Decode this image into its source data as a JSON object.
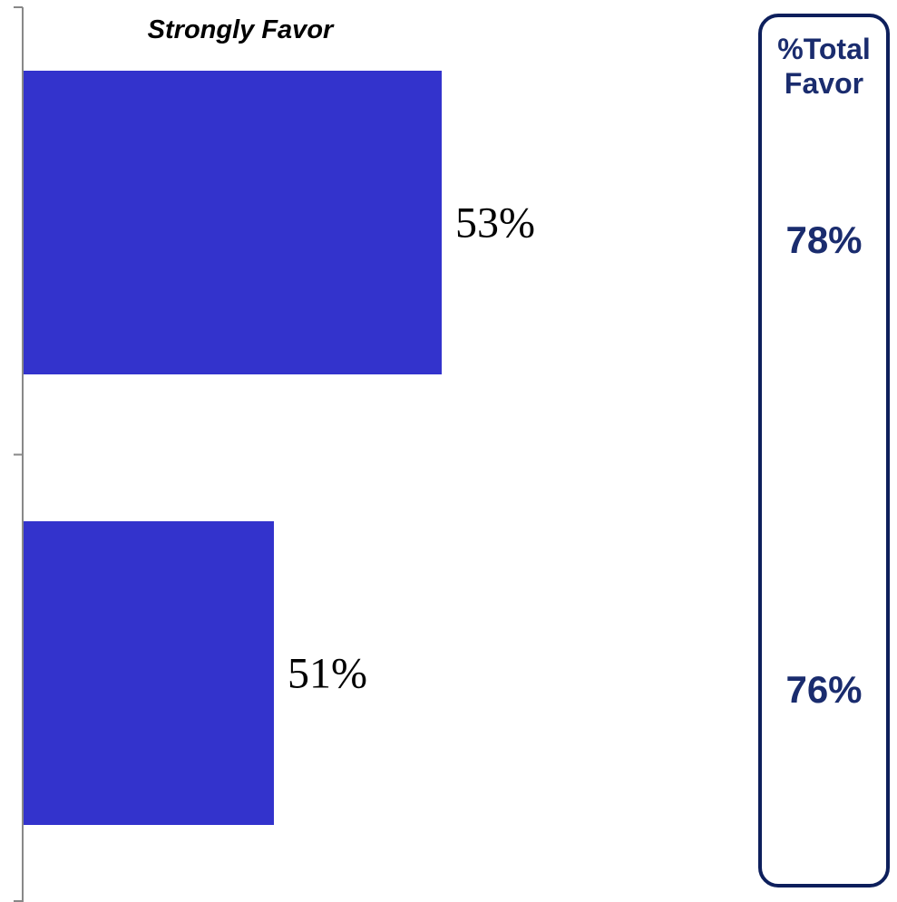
{
  "chart_data": {
    "type": "bar",
    "orientation": "horizontal",
    "series": [
      {
        "name": "Strongly Favor",
        "values": [
          53,
          51
        ],
        "value_labels": [
          "53%",
          "51%"
        ],
        "color": "#3333cc"
      }
    ],
    "categories": [
      "",
      ""
    ],
    "xlim": [
      0,
      100
    ],
    "grid": false
  },
  "total_favor": {
    "header": "%Total Favor",
    "header_lines": [
      "%Total",
      "Favor"
    ],
    "values": [
      "78%",
      "76%"
    ],
    "border_color": "#0d1f5c",
    "text_color": "#1a2c6e"
  }
}
